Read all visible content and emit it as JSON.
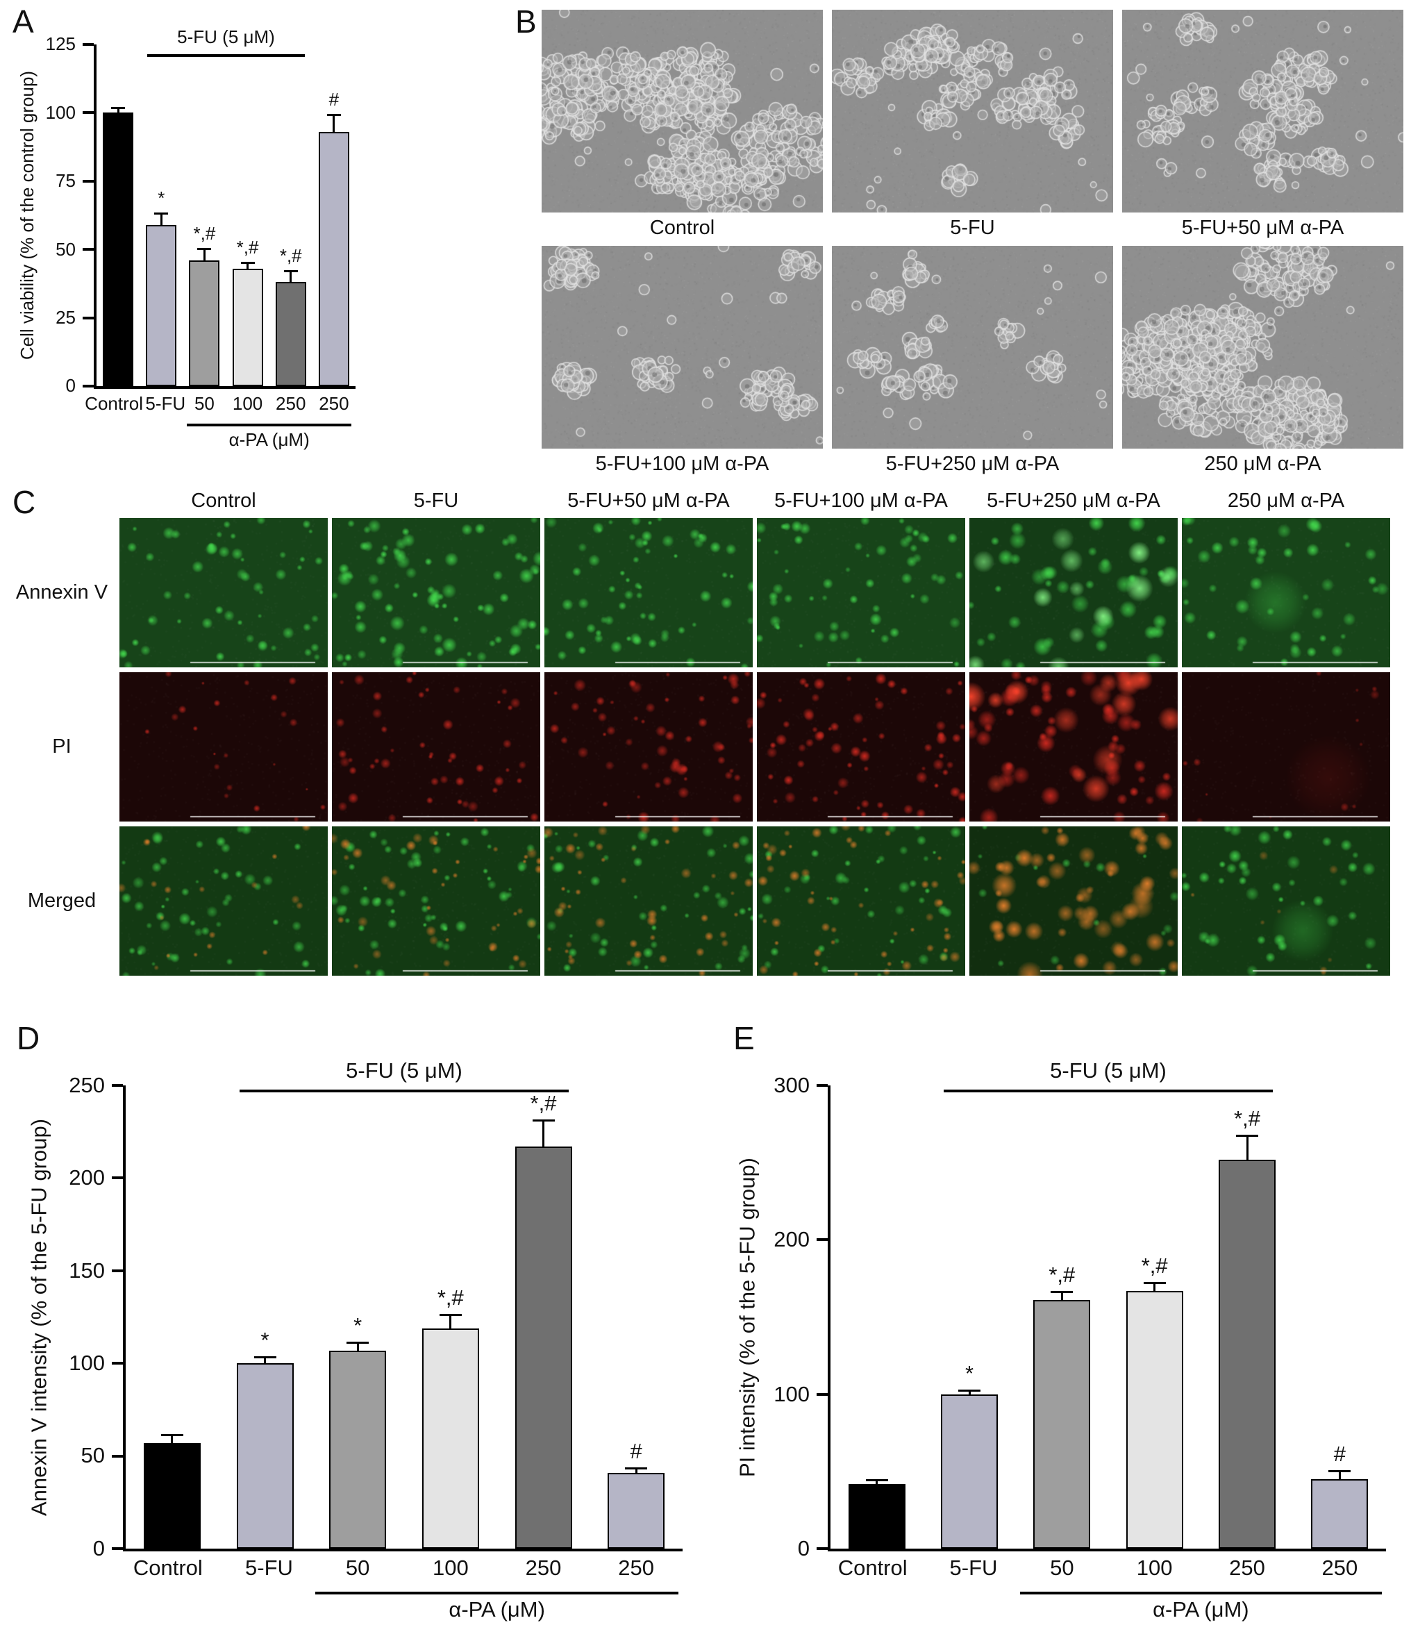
{
  "letters": {
    "A": "A",
    "B": "B",
    "C": "C",
    "D": "D",
    "E": "E"
  },
  "panelB": {
    "labels": [
      "Control",
      "5-FU",
      "5-FU+50 μM α-PA",
      "5-FU+100 μM α-PA",
      "5-FU+250 μM α-PA",
      "250 μM α-PA"
    ]
  },
  "panelC": {
    "col_labels": [
      "Control",
      "5-FU",
      "5-FU+50 μM α-PA",
      "5-FU+100 μM α-PA",
      "5-FU+250 μM α-PA",
      "250 μM α-PA"
    ],
    "row_labels": [
      "Annexin V",
      "PI",
      "Merged"
    ]
  },
  "chart_data": [
    {
      "id": "A",
      "type": "bar",
      "ylabel": "Cell viability (% of the control group)",
      "categories": [
        "Control",
        "5-FU",
        "50",
        "100",
        "250",
        "250"
      ],
      "values": [
        100,
        59,
        46,
        43,
        38,
        93
      ],
      "errors": [
        1.5,
        4,
        4,
        2,
        4,
        6
      ],
      "markers": [
        "",
        "*",
        "*,#",
        "*,#",
        "*,#",
        "#"
      ],
      "ylim": [
        0,
        125
      ],
      "yticks": [
        0,
        25,
        50,
        75,
        100,
        125
      ],
      "bar_colors": [
        "#000000",
        "#b5b5c6",
        "#9e9e9e",
        "#e4e4e4",
        "#707070",
        "#b5b5c6"
      ],
      "bracket": {
        "label": "5-FU (5 μM)",
        "from": 1,
        "to": 4
      },
      "group": {
        "label": "α-PA (μM)",
        "from": 2,
        "to": 5
      }
    },
    {
      "id": "D",
      "type": "bar",
      "ylabel": "Annexin V intensity (% of the 5-FU group)",
      "categories": [
        "Control",
        "5-FU",
        "50",
        "100",
        "250",
        "250"
      ],
      "values": [
        57,
        100,
        107,
        119,
        217,
        41
      ],
      "errors": [
        4,
        3,
        4,
        7,
        14,
        2
      ],
      "markers": [
        "",
        "*",
        "*",
        "*,#",
        "*,#",
        "#"
      ],
      "ylim": [
        0,
        250
      ],
      "yticks": [
        0,
        50,
        100,
        150,
        200,
        250
      ],
      "bar_colors": [
        "#000000",
        "#b5b5c6",
        "#9e9e9e",
        "#e4e4e4",
        "#707070",
        "#b5b5c6"
      ],
      "bracket": {
        "label": "5-FU (5 μM)",
        "from": 1,
        "to": 4
      },
      "group": {
        "label": "α-PA (μM)",
        "from": 2,
        "to": 5
      }
    },
    {
      "id": "E",
      "type": "bar",
      "ylabel": "PI intensity (% of the 5-FU group)",
      "categories": [
        "Control",
        "5-FU",
        "50",
        "100",
        "250",
        "250"
      ],
      "values": [
        42,
        100,
        161,
        167,
        252,
        45
      ],
      "errors": [
        2,
        2,
        5,
        5,
        15,
        5
      ],
      "markers": [
        "",
        "*",
        "*,#",
        "*,#",
        "*,#",
        "#"
      ],
      "ylim": [
        0,
        300
      ],
      "yticks": [
        0,
        100,
        200,
        300
      ],
      "bar_colors": [
        "#000000",
        "#b5b5c6",
        "#9e9e9e",
        "#e4e4e4",
        "#707070",
        "#b5b5c6"
      ],
      "bracket": {
        "label": "5-FU (5 μM)",
        "from": 1,
        "to": 4
      },
      "group": {
        "label": "α-PA (μM)",
        "from": 2,
        "to": 5
      }
    }
  ]
}
